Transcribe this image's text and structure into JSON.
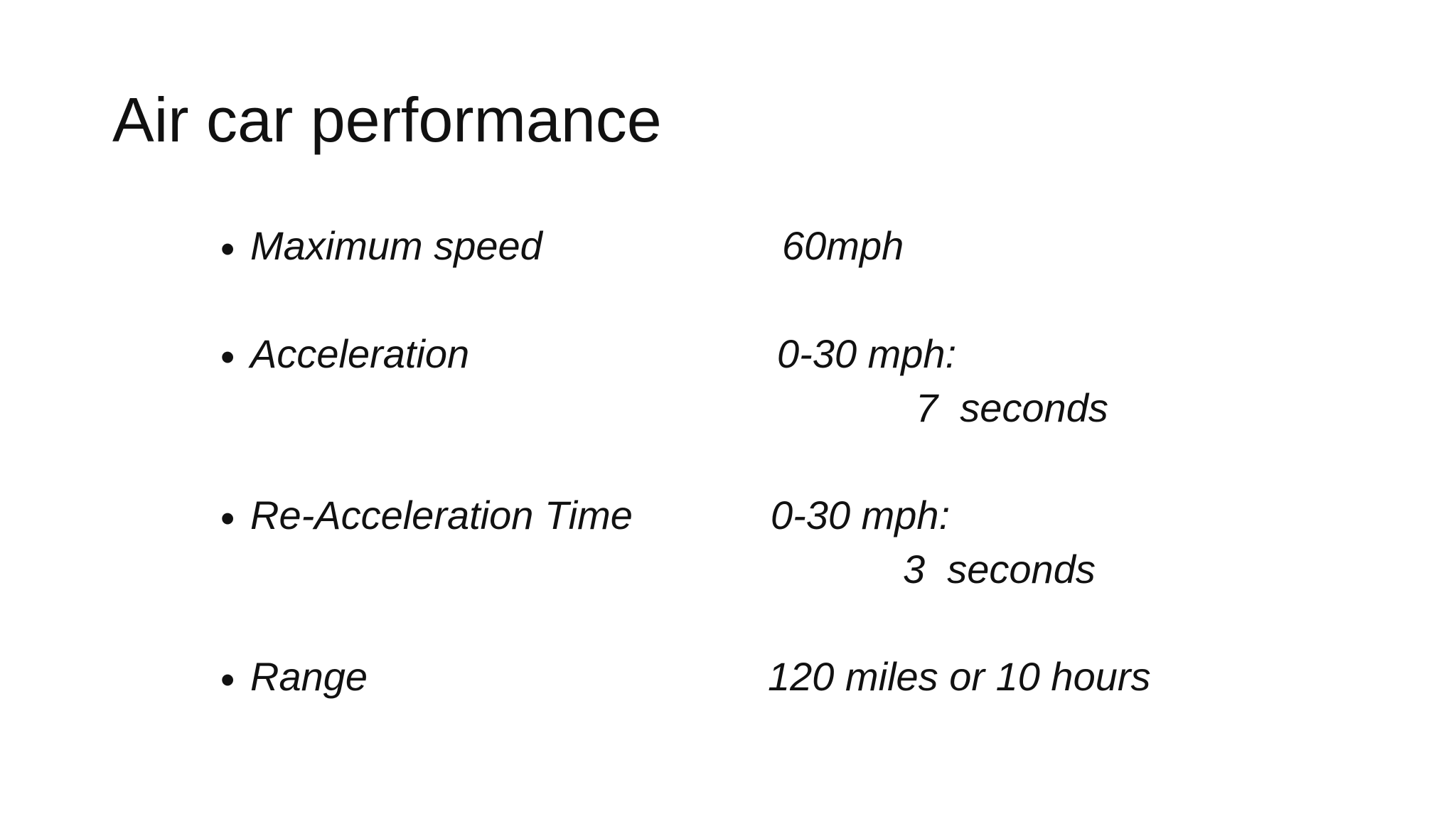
{
  "slide": {
    "title": "Air car performance",
    "items": [
      {
        "label": "Maximum speed",
        "value_lines": [
          "60mph"
        ]
      },
      {
        "label": "Acceleration",
        "value_lines": [
          "0-30 mph:",
          "7  seconds"
        ]
      },
      {
        "label": "Re-Acceleration Time",
        "value_lines": [
          "0-30 mph:",
          "3  seconds"
        ]
      },
      {
        "label": "Range",
        "value_lines": [
          "120 miles or 10 hours"
        ]
      }
    ],
    "bullet_glyph": "•"
  }
}
